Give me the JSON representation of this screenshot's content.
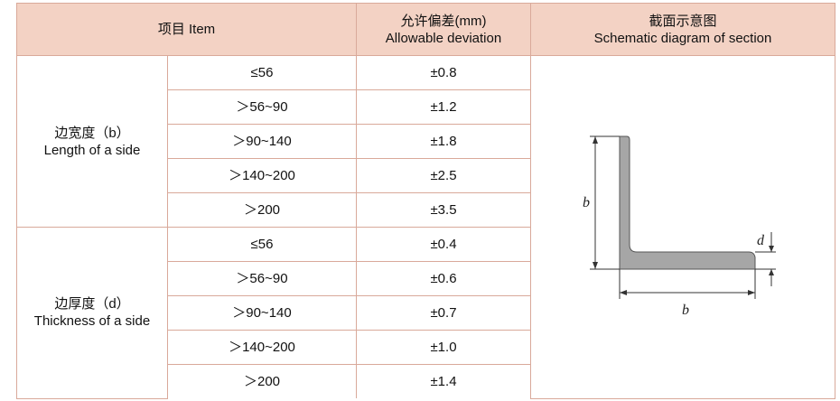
{
  "header": {
    "item": "项目  Item",
    "deviation_cn": "允许偏差(mm)",
    "deviation_en": "Allowable deviation",
    "section_cn": "截面示意图",
    "section_en": "Schematic diagram of section"
  },
  "groups": [
    {
      "label_cn": "边宽度（b）",
      "label_en": "Length of a side",
      "rows": [
        {
          "range": "≤56",
          "deviation": "±0.8"
        },
        {
          "range": "＞56~90",
          "deviation": "±1.2"
        },
        {
          "range": "＞90~140",
          "deviation": "±1.8"
        },
        {
          "range": "＞140~200",
          "deviation": "±2.5"
        },
        {
          "range": "＞200",
          "deviation": "±3.5"
        }
      ]
    },
    {
      "label_cn": "边厚度（d）",
      "label_en": "Thickness of a side",
      "rows": [
        {
          "range": "≤56",
          "deviation": "±0.4"
        },
        {
          "range": "＞56~90",
          "deviation": "±0.6"
        },
        {
          "range": "＞90~140",
          "deviation": "±0.7"
        },
        {
          "range": "＞140~200",
          "deviation": "±1.0"
        },
        {
          "range": "＞200",
          "deviation": "±1.4"
        }
      ]
    }
  ],
  "diagram": {
    "label_b_vertical": "b",
    "label_b_horizontal": "b",
    "label_d": "d",
    "fill_color": "#a6a6a6"
  }
}
